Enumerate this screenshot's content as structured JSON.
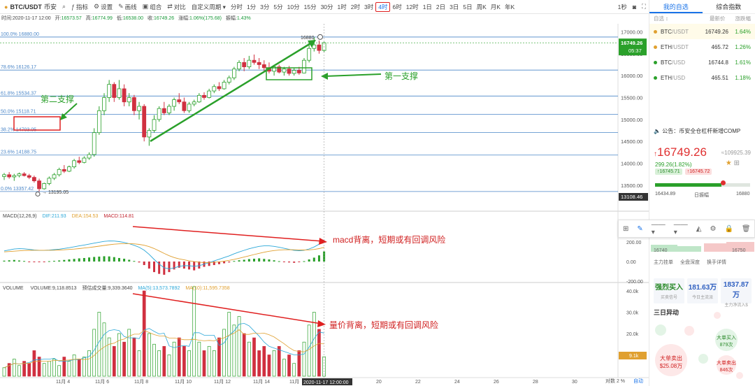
{
  "toolbar": {
    "symbol": "BTC/USDT",
    "exchange": "币安",
    "buttons": [
      {
        "icon": "indicator-icon",
        "label": "指标"
      },
      {
        "icon": "settings-icon",
        "label": "设置"
      },
      {
        "icon": "draw-icon",
        "label": "画线"
      },
      {
        "icon": "combine-icon",
        "label": "组合"
      },
      {
        "icon": "compare-icon",
        "label": "对比"
      },
      {
        "icon": "",
        "label": "自定义周期 ▾"
      }
    ],
    "intervals": [
      "分时",
      "1分",
      "3分",
      "5分",
      "10分",
      "15分",
      "30分",
      "1时",
      "2时",
      "3时",
      "4时",
      "6时",
      "12时",
      "1日",
      "2日",
      "3日",
      "5日",
      "周K",
      "月K",
      "年K"
    ],
    "active_interval": "4时",
    "right_label": "1秒"
  },
  "info": {
    "time_label": "时间:",
    "time": "2020-11-17 12:00",
    "open_label": "开:",
    "open": "16573.57",
    "high_label": "高:",
    "high": "16774.99",
    "low_label": "低:",
    "low": "16538.00",
    "close_label": "收:",
    "close": "16749.26",
    "chg_label": "涨幅:",
    "chg": "1.06%(175.68)",
    "amp_label": "振幅:",
    "amp": "1.43%"
  },
  "macd_header": {
    "name": "MACD(12,26,9)",
    "dif": "DIF:211.93",
    "dea": "DEA:154.53",
    "macd": "MACD:114.81"
  },
  "vol_header": {
    "name": "VOLUME",
    "vol": "VOLUME:9,118.8513",
    "est": "预估成交量:9,339.3640",
    "ma5": "MA(5):13,573.7892",
    "ma10": "MA(10):11,595.7358"
  },
  "annotations": {
    "support2": "第二支撑",
    "support1": "第一支撑",
    "macd_div": "macd背离，短期或有回调风险",
    "vol_div": "量价背离，短期或有回调风险"
  },
  "chart_data": {
    "type": "candlestick",
    "x_labels": [
      "11月 4",
      "11月 6",
      "11月 8",
      "11月 10",
      "11月 12",
      "11月 14",
      "11月",
      "20",
      "22",
      "24",
      "26",
      "28",
      "30"
    ],
    "y_ticks": [
      "17000.00",
      "16500.00",
      "16000.00",
      "15500.00",
      "15000.00",
      "14500.00",
      "14000.00",
      "13500.00"
    ],
    "fib_levels": [
      {
        "label": "100.0% 16880.00",
        "value": 16880.0
      },
      {
        "label": "78.6% 16126.17",
        "value": 16126.17
      },
      {
        "label": "61.8% 15534.37",
        "value": 15534.37
      },
      {
        "label": "50.0% 15118.71",
        "value": 15118.71
      },
      {
        "label": "38.2% 14703.05",
        "value": 14703.05
      },
      {
        "label": "23.6% 14188.75",
        "value": 14188.75
      },
      {
        "label": "0.0% 13357.42",
        "value": 13357.42
      }
    ],
    "high_label": "16880",
    "low_label": "13195.05",
    "last_price": "16749.26",
    "countdown": "05:37",
    "cursor_price": "13108.46",
    "cursor_time": "2020-11-17 12:00:00",
    "macd_ticks": [
      "200.00",
      "0.00",
      "-200.00"
    ],
    "vol_ticks": [
      "40.0k",
      "30.0k",
      "20.0k",
      "10.0k"
    ],
    "vol_last": "9.1k",
    "series": [
      {
        "name": "DIF",
        "color": "#2aa7d8"
      },
      {
        "name": "DEA",
        "color": "#e0a030"
      },
      {
        "name": "MA(5)",
        "color": "#2aa7d8"
      },
      {
        "name": "MA(10)",
        "color": "#e0a030"
      }
    ],
    "up_color": "#2aa02a",
    "down_color": "#d03040"
  },
  "bottom": {
    "right": "对数 2 %",
    "auto": "自动"
  },
  "right_panel": {
    "tabs": [
      "我的自选",
      "综合指数"
    ],
    "headers": [
      "自选 ↕",
      "最新价",
      "涨跌幅"
    ],
    "watchlist": [
      {
        "name": "BTC",
        "quote": "/USDT",
        "price": "16749.26",
        "chg": "1.64%"
      },
      {
        "name": "ETH",
        "quote": "/USDT",
        "price": "465.72",
        "chg": "1.26%"
      },
      {
        "name": "BTC",
        "quote": "/USD",
        "price": "16744.8",
        "chg": "1.61%"
      },
      {
        "name": "ETH",
        "quote": "/USD",
        "price": "465.51",
        "chg": "1.18%"
      }
    ],
    "notice": "公告：币安全仓杠杆新增COMP",
    "price": "16749.26",
    "price_cny": "≈109925.39",
    "change": "299.26(1.82%)",
    "pill_low": "16745.71",
    "pill_high": "16745.72",
    "range_low": "16434.89",
    "range_mid": "日振幅",
    "range_high": "16880",
    "float_low": "16740",
    "float_high": "16750",
    "tags": [
      "主力挂单",
      "全盘深度",
      "换手详情"
    ],
    "stats": [
      {
        "big": "强烈买入",
        "small": "买卖信号"
      },
      {
        "big": "181.63万",
        "small": "今日主流派"
      },
      {
        "big": "1837.87万",
        "small": "主力净流入$"
      }
    ],
    "section3": "三日异动",
    "bubbles": [
      {
        "t": "大单卖出",
        "v": "$25.08万"
      },
      {
        "t": "大单买入",
        "v": "879次"
      },
      {
        "t": "大单卖出",
        "v": "846次"
      }
    ]
  }
}
